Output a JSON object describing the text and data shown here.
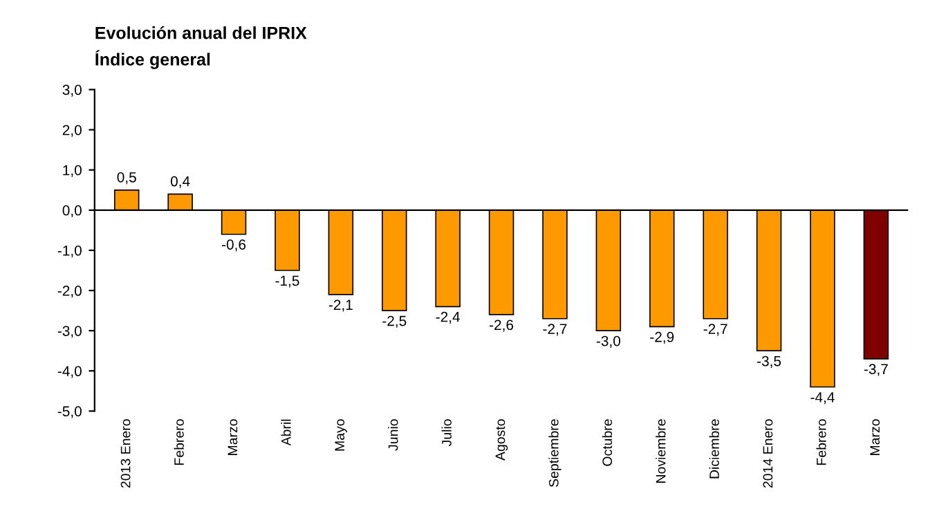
{
  "chart_data": {
    "type": "bar",
    "title": "Evolución anual del IPRIX",
    "subtitle": "Índice general",
    "categories": [
      "2013 Enero",
      "Febrero",
      "Marzo",
      "Abril",
      "Mayo",
      "Junio",
      "Julio",
      "Agosto",
      "Septiembre",
      "Octubre",
      "Noviembre",
      "Diciembre",
      "2014 Enero",
      "Febrero",
      "Marzo"
    ],
    "values": [
      0.5,
      0.4,
      -0.6,
      -1.5,
      -2.1,
      -2.5,
      -2.4,
      -2.6,
      -2.7,
      -3.0,
      -2.9,
      -2.7,
      -3.5,
      -4.4,
      -3.7
    ],
    "value_labels": [
      "0,5",
      "0,4",
      "-0,6",
      "-1,5",
      "-2,1",
      "-2,5",
      "-2,4",
      "-2,6",
      "-2,7",
      "-3,0",
      "-2,9",
      "-2,7",
      "-3,5",
      "-4,4",
      "-3,7"
    ],
    "colors": [
      "#ff9900",
      "#ff9900",
      "#ff9900",
      "#ff9900",
      "#ff9900",
      "#ff9900",
      "#ff9900",
      "#ff9900",
      "#ff9900",
      "#ff9900",
      "#ff9900",
      "#ff9900",
      "#ff9900",
      "#ff9900",
      "#800000"
    ],
    "ylim": [
      -5,
      3
    ],
    "yticks": [
      {
        "value": -5,
        "label": "-5,0"
      },
      {
        "value": -4,
        "label": "-4,0"
      },
      {
        "value": -3,
        "label": "-3,0"
      },
      {
        "value": -2,
        "label": "-2,0"
      },
      {
        "value": -1,
        "label": "-1,0"
      },
      {
        "value": 0,
        "label": "0,0"
      },
      {
        "value": 1,
        "label": "1,0"
      },
      {
        "value": 2,
        "label": "2,0"
      },
      {
        "value": 3,
        "label": "3,0"
      }
    ],
    "ref_lines": [
      {
        "axis": "y",
        "value": 0,
        "color": "#000000"
      }
    ],
    "grid": false,
    "legend": false
  }
}
